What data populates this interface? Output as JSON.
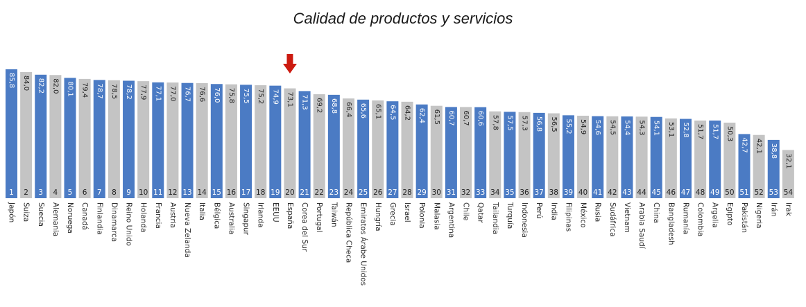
{
  "chart_data": {
    "type": "bar",
    "title": "Calidad de productos y servicios",
    "highlight_category": "España",
    "highlight_marker": "down-arrow",
    "colors": {
      "blue": "#4b7bc4",
      "gray": "#c4c4c4",
      "arrow": "#cc1a10"
    },
    "categories": [
      "Japón",
      "Suiza",
      "Suecia",
      "Alemania",
      "Noruega",
      "Canadá",
      "Finlandia",
      "Dinamarca",
      "Reino Unido",
      "Holanda",
      "Francia",
      "Austria",
      "Nueva Zelanda",
      "Italia",
      "Bélgica",
      "Australia",
      "Singapur",
      "Irlanda",
      "EEUU",
      "España",
      "Corea del Sur",
      "Portugal",
      "Taiwán",
      "República Checa",
      "Emiratos Árabe Unidos",
      "Hungría",
      "Grecia",
      "Israel",
      "Polonia",
      "Malasia",
      "Argentina",
      "Chile",
      "Qatar",
      "Tailandia",
      "Turquía",
      "Indonesia",
      "Perú",
      "India",
      "Filipinas",
      "México",
      "Rusia",
      "Sudáfrica",
      "Vietnam",
      "Arabia Saudí",
      "China",
      "Bangladesh",
      "Rumanía",
      "Colombia",
      "Argelia",
      "Egipto",
      "Pakistán",
      "Nigeria",
      "Irán",
      "Irak"
    ],
    "values": [
      85.8,
      84.0,
      82.2,
      82.0,
      80.1,
      79.4,
      78.7,
      78.5,
      78.2,
      77.9,
      77.1,
      77.0,
      76.7,
      76.6,
      76.0,
      75.8,
      75.5,
      75.2,
      74.9,
      73.1,
      71.3,
      69.2,
      68.8,
      66.4,
      65.6,
      65.1,
      64.5,
      64.2,
      62.4,
      61.5,
      60.7,
      60.7,
      60.6,
      57.8,
      57.5,
      57.3,
      56.8,
      56.5,
      55.2,
      54.9,
      54.6,
      54.5,
      54.4,
      54.3,
      54.1,
      53.1,
      52.8,
      51.7,
      51.7,
      50.3,
      42.7,
      42.1,
      38.8,
      32.1
    ],
    "value_labels": [
      "85,8",
      "84,0",
      "82,2",
      "82,0",
      "80,1",
      "79,4",
      "78,7",
      "78,5",
      "78,2",
      "77,9",
      "77,1",
      "77,0",
      "76,7",
      "76,6",
      "76,0",
      "75,8",
      "75,5",
      "75,2",
      "74,9",
      "73,1",
      "71,3",
      "69,2",
      "68,8",
      "66,4",
      "65,6",
      "65,1",
      "64,5",
      "64,2",
      "62,4",
      "61,5",
      "60,7",
      "60,7",
      "60,6",
      "57,8",
      "57,5",
      "57,3",
      "56,8",
      "56,5",
      "55,2",
      "54,9",
      "54,6",
      "54,5",
      "54,4",
      "54,3",
      "54,1",
      "53,1",
      "52,8",
      "51,7",
      "51,7",
      "50,3",
      "42,7",
      "42,1",
      "38,8",
      "32,1"
    ],
    "ranks": [
      "1",
      "2",
      "3",
      "4",
      "5",
      "6",
      "7",
      "8",
      "9",
      "10",
      "11",
      "12",
      "13",
      "14",
      "15",
      "16",
      "17",
      "18",
      "19",
      "20",
      "21",
      "22",
      "23",
      "24",
      "25",
      "26",
      "27",
      "28",
      "29",
      "30",
      "31",
      "32",
      "33",
      "34",
      "35",
      "36",
      "37",
      "38",
      "39",
      "40",
      "41",
      "42",
      "43",
      "44",
      "45",
      "46",
      "47",
      "48",
      "49",
      "50",
      "51",
      "52",
      "53",
      "54"
    ],
    "bar_colors": [
      "blue",
      "gray",
      "blue",
      "gray",
      "blue",
      "gray",
      "blue",
      "gray",
      "blue",
      "gray",
      "blue",
      "gray",
      "blue",
      "gray",
      "blue",
      "gray",
      "blue",
      "gray",
      "blue",
      "gray",
      "blue",
      "gray",
      "blue",
      "gray",
      "blue",
      "gray",
      "blue",
      "gray",
      "blue",
      "gray",
      "blue",
      "gray",
      "blue",
      "gray",
      "blue",
      "gray",
      "blue",
      "gray",
      "blue",
      "gray",
      "blue",
      "gray",
      "blue",
      "gray",
      "blue",
      "gray",
      "blue",
      "gray",
      "blue",
      "gray",
      "blue",
      "gray",
      "blue",
      "gray"
    ],
    "ylim": [
      0,
      85.8
    ],
    "xlabel": "",
    "ylabel": "",
    "grid": false,
    "legend": "none"
  }
}
